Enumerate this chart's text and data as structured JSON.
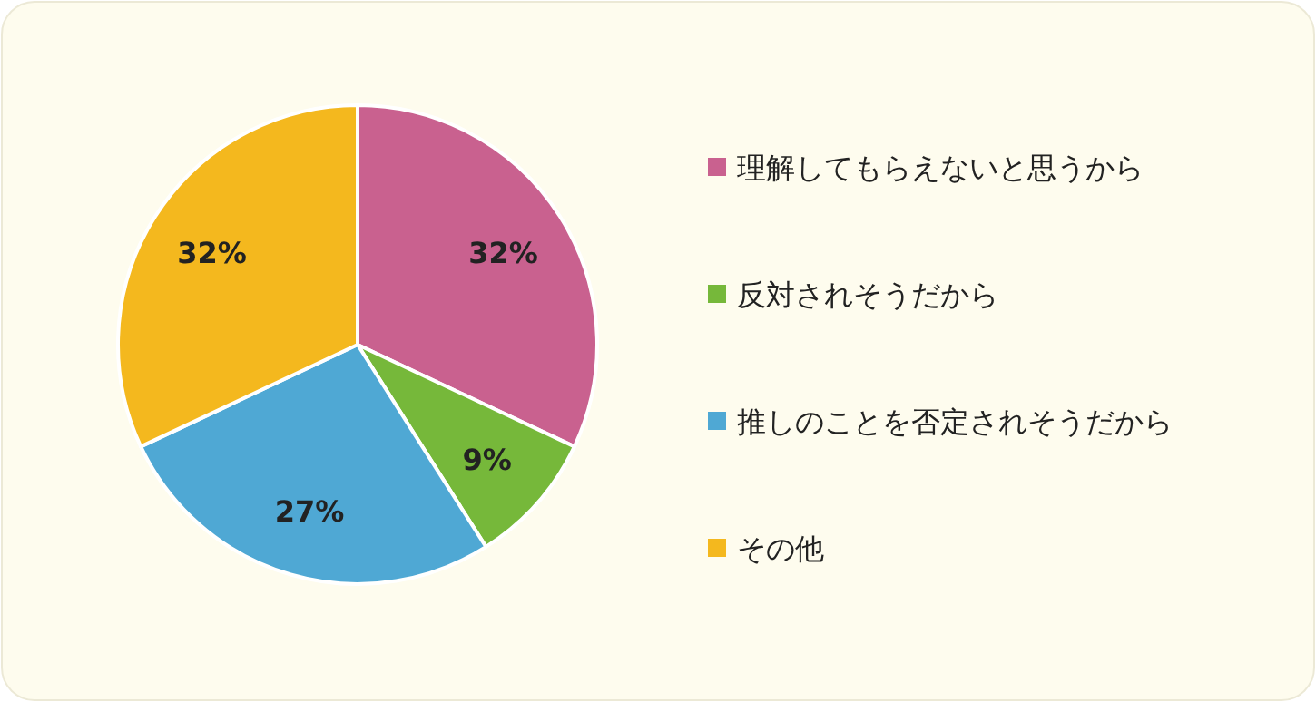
{
  "chart_data": {
    "type": "pie",
    "categories": [
      "理解してもらえないと思うから",
      "反対されそうだから",
      "推しのことを否定されそうだから",
      "その他"
    ],
    "values": [
      32,
      9,
      27,
      32
    ],
    "colors": [
      "#c9618f",
      "#76b83a",
      "#4fa8d4",
      "#f4b81e"
    ],
    "value_labels": [
      "32%",
      "9%",
      "27%",
      "32%"
    ],
    "legend": "right"
  }
}
